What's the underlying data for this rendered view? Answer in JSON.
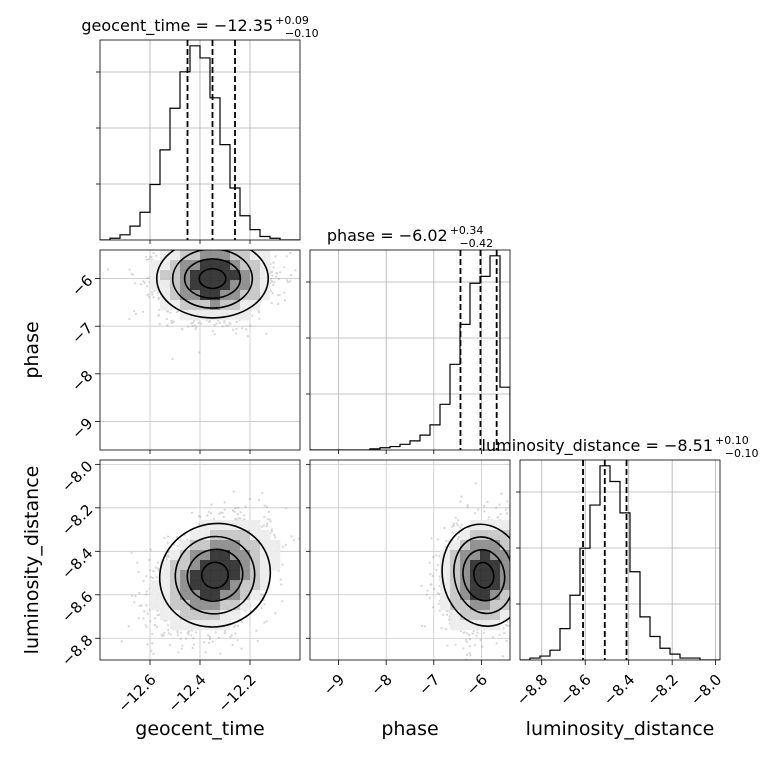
{
  "chart_data": {
    "type": "corner",
    "parameters": [
      {
        "name": "geocent_time",
        "range": [
          -12.8,
          -12.0
        ],
        "ticks": [
          "−12.6",
          "−12.4",
          "−12.2"
        ],
        "tick_values": [
          -12.6,
          -12.4,
          -12.2
        ],
        "title": "geocent_time = −12.35",
        "title_sup": "+0.09",
        "title_sub": "−0.10",
        "quantiles": [
          -12.45,
          -12.35,
          -12.26
        ]
      },
      {
        "name": "phase",
        "range": [
          -9.6,
          -5.4
        ],
        "ticks": [
          "−9",
          "−8",
          "−7",
          "−6"
        ],
        "tick_values": [
          -9,
          -8,
          -7,
          -6
        ],
        "title": "phase = −6.02",
        "title_sup": "+0.34",
        "title_sub": "−0.42",
        "quantiles": [
          -6.44,
          -6.02,
          -5.68
        ]
      },
      {
        "name": "luminosity_distance",
        "range": [
          -8.9,
          -7.98
        ],
        "ticks": [
          "−8.8",
          "−8.6",
          "−8.4",
          "−8.2",
          "−8.0"
        ],
        "tick_values": [
          -8.8,
          -8.6,
          -8.4,
          -8.2,
          -8.0
        ],
        "title": "luminosity_distance = −8.51",
        "title_sup": "+0.10",
        "title_sub": "−0.10",
        "quantiles": [
          -8.61,
          -8.51,
          -8.41
        ]
      }
    ],
    "histograms": [
      {
        "parameter": "geocent_time",
        "bin_edges_range": [
          -12.8,
          -12.0
        ],
        "bins": 20,
        "counts": [
          0,
          1,
          3,
          8,
          16,
          32,
          52,
          76,
          97,
          112,
          105,
          82,
          55,
          30,
          14,
          6,
          2,
          1,
          0,
          0
        ]
      },
      {
        "parameter": "phase",
        "bin_edges_range": [
          -9.6,
          -5.4
        ],
        "bins": 20,
        "counts": [
          0,
          0,
          0,
          0,
          0,
          0,
          1,
          2,
          3,
          5,
          8,
          13,
          22,
          40,
          75,
          110,
          146,
          152,
          170,
          55
        ]
      },
      {
        "parameter": "luminosity_distance",
        "bin_edges_range": [
          -8.9,
          -7.98
        ],
        "bins": 20,
        "counts": [
          0,
          1,
          2,
          5,
          16,
          33,
          57,
          79,
          99,
          91,
          75,
          45,
          22,
          12,
          6,
          3,
          1,
          1,
          0,
          0
        ]
      }
    ],
    "pairs": [
      {
        "x": "geocent_time",
        "y": "phase",
        "center": [
          -12.35,
          -6.0
        ],
        "sd": [
          0.09,
          0.35
        ],
        "correlation": 0.0
      },
      {
        "x": "geocent_time",
        "y": "luminosity_distance",
        "center": [
          -12.34,
          -8.51
        ],
        "sd": [
          0.09,
          0.1
        ],
        "correlation": 0.35
      },
      {
        "x": "phase",
        "y": "luminosity_distance",
        "center": [
          -5.95,
          -8.51
        ],
        "sd": [
          0.35,
          0.1
        ],
        "correlation": 0.15
      }
    ],
    "grid": true
  }
}
